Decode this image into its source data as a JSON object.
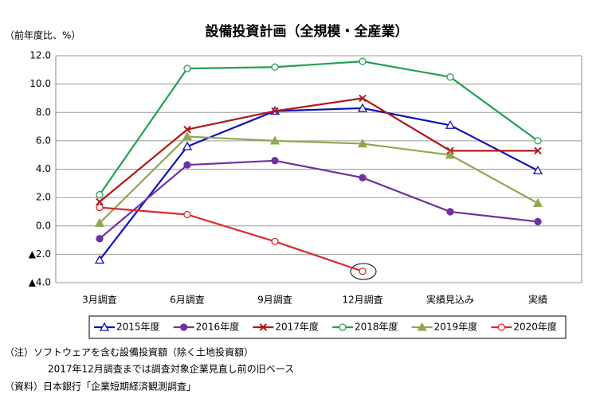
{
  "chart_data": {
    "type": "line",
    "title": "設備投資計画（全規模・全産業）",
    "y_label": "（前年度比、%）",
    "categories": [
      "3月調査",
      "6月調査",
      "9月調査",
      "12月調査",
      "実績見込み",
      "実績"
    ],
    "ylim": [
      -4,
      12
    ],
    "yticks": [
      {
        "value": -4,
        "label": "▲4.0"
      },
      {
        "value": -2,
        "label": "▲2.0"
      },
      {
        "value": 0,
        "label": "0.0"
      },
      {
        "value": 2,
        "label": "2.0"
      },
      {
        "value": 4,
        "label": "4.0"
      },
      {
        "value": 6,
        "label": "6.0"
      },
      {
        "value": 8,
        "label": "8.0"
      },
      {
        "value": 10,
        "label": "10.0"
      },
      {
        "value": 12,
        "label": "12.0"
      }
    ],
    "grid": true,
    "legend": "bottom",
    "series": [
      {
        "name": "2015年度",
        "color": "#1010b8",
        "marker": "triangle",
        "filled": false,
        "values": [
          -2.4,
          5.6,
          8.1,
          8.3,
          7.1,
          3.9
        ]
      },
      {
        "name": "2016年度",
        "color": "#7030a0",
        "marker": "circle",
        "filled": true,
        "values": [
          -0.9,
          4.3,
          4.6,
          3.4,
          1.0,
          0.3
        ]
      },
      {
        "name": "2017年度",
        "color": "#b01818",
        "marker": "x",
        "filled": true,
        "values": [
          1.7,
          6.8,
          8.1,
          9.0,
          5.3,
          5.3
        ]
      },
      {
        "name": "2018年度",
        "color": "#22a055",
        "marker": "circle",
        "filled": false,
        "values": [
          2.2,
          11.1,
          11.2,
          11.6,
          10.5,
          6.0
        ]
      },
      {
        "name": "2019年度",
        "color": "#8fa850",
        "marker": "triangle",
        "filled": true,
        "values": [
          0.2,
          6.3,
          6.0,
          5.8,
          5.0,
          1.6
        ]
      },
      {
        "name": "2020年度",
        "color": "#e02828",
        "marker": "circle",
        "filled": false,
        "values": [
          1.3,
          0.8,
          -1.1,
          -3.2,
          null,
          null
        ]
      }
    ],
    "notes": [
      "（注）ソフトウェアを含む設備投資額（除く土地投資額）",
      "2017年12月調査までは調査対象企業見直し前の旧ベース",
      "（資料）日本銀行「企業短期経済観測調査」"
    ]
  }
}
